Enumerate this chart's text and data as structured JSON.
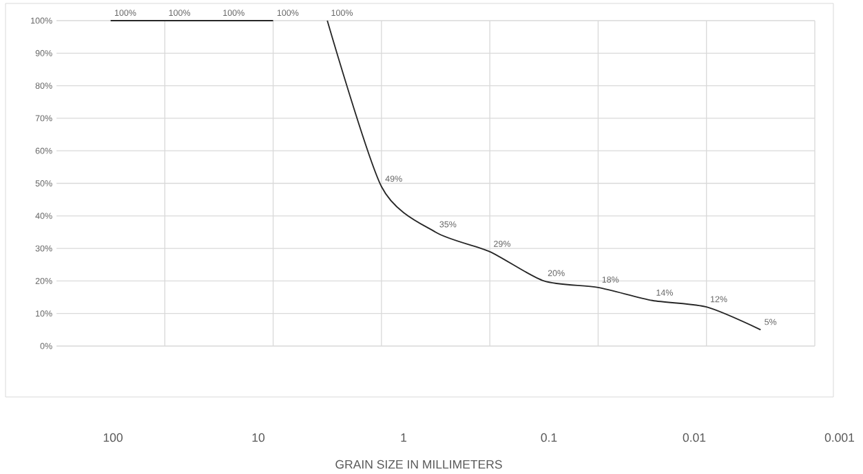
{
  "chart_data": {
    "type": "line",
    "categories": [
      null,
      null,
      null,
      null,
      null,
      null,
      null,
      null,
      null,
      null,
      null,
      null,
      null
    ],
    "series": [
      {
        "color": "#262626",
        "values": [
          100,
          100,
          100,
          100,
          null,
          null,
          null,
          null,
          null,
          null,
          null,
          null,
          null
        ],
        "value_labels": [
          "100%",
          "100%",
          "100%",
          "100%",
          null,
          null,
          null,
          null,
          null,
          null,
          null,
          null,
          null
        ]
      },
      {
        "color": "#262626",
        "values": [
          null,
          null,
          null,
          null,
          100,
          49,
          35,
          29,
          20,
          18,
          14,
          12,
          5
        ],
        "value_labels": [
          null,
          null,
          null,
          null,
          "100%",
          "49%",
          "35%",
          "29%",
          "20%",
          "18%",
          "14%",
          "12%",
          "5%"
        ]
      }
    ],
    "ylim": [
      0,
      100
    ],
    "yticks": [
      {
        "value": 0,
        "label": "0%"
      },
      {
        "value": 10,
        "label": "10%"
      },
      {
        "value": 20,
        "label": "20%"
      },
      {
        "value": 30,
        "label": "30%"
      },
      {
        "value": 40,
        "label": "40%"
      },
      {
        "value": 50,
        "label": "50%"
      },
      {
        "value": 60,
        "label": "60%"
      },
      {
        "value": 70,
        "label": "70%"
      },
      {
        "value": 80,
        "label": "80%"
      },
      {
        "value": 90,
        "label": "90%"
      },
      {
        "value": 100,
        "label": "100%"
      }
    ],
    "grid": true,
    "marker": "none",
    "line_style": "solid",
    "tick_labels": "y",
    "annotations": [
      "100",
      "10",
      "1",
      "0.1",
      "0.01",
      "0.001",
      "GRAIN SIZE IN MILLIMETERS"
    ]
  }
}
